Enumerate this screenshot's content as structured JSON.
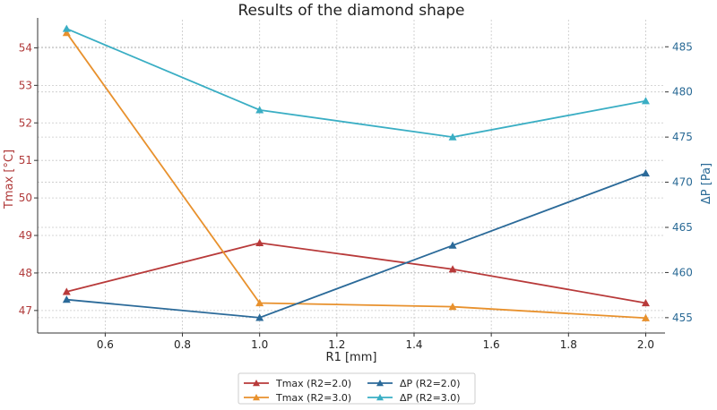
{
  "chart_data": {
    "type": "line",
    "title": "Results of the diamond shape",
    "xlabel": "R1 [mm]",
    "ylabel_left": "Tmax [°C]",
    "ylabel_right": "ΔP [Pa]",
    "xlim": [
      0.425,
      2.05
    ],
    "ylim_left": [
      46.4,
      54.75
    ],
    "ylim_right": [
      453.3,
      488.0
    ],
    "x_ticks": [
      "0.6",
      "0.8",
      "1.0",
      "1.2",
      "1.4",
      "1.6",
      "1.8",
      "2.0"
    ],
    "y_ticks_left": [
      "47",
      "48",
      "49",
      "50",
      "51",
      "52",
      "53",
      "54"
    ],
    "y_ticks_right": [
      "455",
      "460",
      "465",
      "470",
      "475",
      "480",
      "485"
    ],
    "grid": true,
    "legend_position": "bottom-center",
    "left_axis_color": "#b03a3a",
    "right_axis_color": "#2a6a96",
    "x": [
      0.5,
      1.0,
      1.5,
      2.0
    ],
    "series": [
      {
        "name": "Tmax (R2=2.0)",
        "axis": "left",
        "color": "#b83a3a",
        "values": [
          47.5,
          48.8,
          48.1,
          47.2
        ]
      },
      {
        "name": "Tmax (R2=3.0)",
        "axis": "left",
        "color": "#e8912d",
        "values": [
          54.4,
          47.2,
          47.1,
          46.8
        ]
      },
      {
        "name": "ΔP (R2=2.0)",
        "axis": "right",
        "color": "#2b6a99",
        "values": [
          457,
          455,
          463,
          471
        ]
      },
      {
        "name": "ΔP (R2=3.0)",
        "axis": "right",
        "color": "#3aaec4",
        "values": [
          487,
          478,
          475,
          479
        ]
      }
    ]
  }
}
